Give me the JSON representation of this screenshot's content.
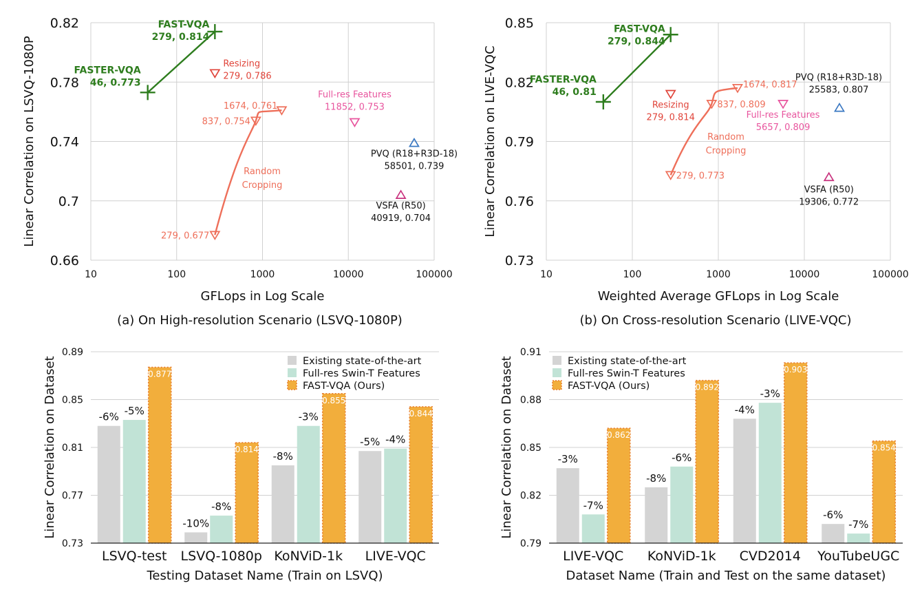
{
  "chart_data": [
    {
      "id": "a",
      "type": "scatter",
      "title": "(a) On High-resolution Scenario (LSVQ-1080P)",
      "xlabel": "GFLops in Log Scale",
      "ylabel": "Linear Correlation on LSVQ-1080P",
      "xscale": "log",
      "xlim": [
        10,
        100000
      ],
      "ylim": [
        0.66,
        0.82
      ],
      "xticks": [
        "10",
        "100",
        "1000",
        "10000",
        "100000"
      ],
      "xtick_values": [
        10,
        100,
        1000,
        10000,
        100000
      ],
      "yticks": [
        "0.66",
        "0.7",
        "0.74",
        "0.78",
        "0.82"
      ],
      "ytick_values": [
        0.66,
        0.7,
        0.74,
        0.78,
        0.82
      ],
      "grid": true,
      "series": [
        {
          "name": "FAST/FASTER-VQA",
          "color": "#2e7d1e",
          "marker": "plus",
          "line": true,
          "points": [
            {
              "x": 46,
              "y": 0.773,
              "label": "46, 0.773",
              "title": "FASTER-VQA"
            },
            {
              "x": 279,
              "y": 0.814,
              "label": "279, 0.814",
              "title": "FAST-VQA"
            }
          ]
        },
        {
          "name": "Resizing",
          "color": "#e0443a",
          "marker": "tri-down",
          "line": false,
          "points": [
            {
              "x": 279,
              "y": 0.786,
              "label": "279, 0.786",
              "title": "Resizing"
            }
          ]
        },
        {
          "name": "Random Cropping",
          "color": "#ee6f5a",
          "marker": "tri-down",
          "line": true,
          "smooth": true,
          "annotation": [
            "Random",
            "Cropping"
          ],
          "points": [
            {
              "x": 279,
              "y": 0.677,
              "label": "279, 0.677"
            },
            {
              "x": 837,
              "y": 0.754,
              "label": "837, 0.754"
            },
            {
              "x": 1674,
              "y": 0.761,
              "label": "1674, 0.761"
            }
          ]
        },
        {
          "name": "Full-res Features",
          "color": "#e8559e",
          "marker": "tri-down",
          "line": false,
          "points": [
            {
              "x": 11852,
              "y": 0.753,
              "label": "11852, 0.753",
              "title": "Full-res Features"
            }
          ]
        },
        {
          "name": "PVQ (R18+R3D-18)",
          "color": "#3a78c2",
          "marker": "tri-up",
          "line": false,
          "points": [
            {
              "x": 58501,
              "y": 0.739,
              "label": "58501, 0.739",
              "title": "PVQ (R18+R3D-18)"
            }
          ]
        },
        {
          "name": "VSFA (R50)",
          "color": "#c8327e",
          "marker": "tri-up",
          "line": false,
          "points": [
            {
              "x": 40919,
              "y": 0.704,
              "label": "40919, 0.704",
              "title": "VSFA (R50)"
            }
          ]
        }
      ]
    },
    {
      "id": "b",
      "type": "scatter",
      "title": "(b) On Cross-resolution Scenario (LIVE-VQC)",
      "xlabel": "Weighted Average GFLops in Log Scale",
      "ylabel": "Linear Correlation on LIVE-VQC",
      "xscale": "log",
      "xlim": [
        10,
        100000
      ],
      "ylim": [
        0.73,
        0.85
      ],
      "xticks": [
        "10",
        "100",
        "1000",
        "10000",
        "100000"
      ],
      "xtick_values": [
        10,
        100,
        1000,
        10000,
        100000
      ],
      "yticks": [
        "0.73",
        "0.76",
        "0.79",
        "0.82",
        "0.85"
      ],
      "ytick_values": [
        0.73,
        0.76,
        0.79,
        0.82,
        0.85
      ],
      "grid": true,
      "series": [
        {
          "name": "FAST/FASTER-VQA",
          "color": "#2e7d1e",
          "marker": "plus",
          "line": true,
          "points": [
            {
              "x": 46,
              "y": 0.81,
              "label": "46, 0.81",
              "title": "FASTER-VQA"
            },
            {
              "x": 279,
              "y": 0.844,
              "label": "279, 0.844",
              "title": "FAST-VQA"
            }
          ]
        },
        {
          "name": "Resizing",
          "color": "#e0443a",
          "marker": "tri-down",
          "line": false,
          "points": [
            {
              "x": 279,
              "y": 0.814,
              "label": "279, 0.814",
              "title": "Resizing"
            }
          ]
        },
        {
          "name": "Random Cropping",
          "color": "#ee6f5a",
          "marker": "tri-down",
          "line": true,
          "smooth": true,
          "annotation": [
            "Random",
            "Cropping"
          ],
          "points": [
            {
              "x": 279,
              "y": 0.773,
              "label": "279, 0.773"
            },
            {
              "x": 837,
              "y": 0.809,
              "label": "837, 0.809"
            },
            {
              "x": 1674,
              "y": 0.817,
              "label": "1674, 0.817"
            }
          ]
        },
        {
          "name": "Full-res Features",
          "color": "#e8559e",
          "marker": "tri-down",
          "line": false,
          "points": [
            {
              "x": 5657,
              "y": 0.809,
              "label": "5657, 0.809",
              "title": "Full-res Features"
            }
          ]
        },
        {
          "name": "PVQ (R18+R3D-18)",
          "color": "#3a78c2",
          "marker": "tri-up",
          "line": false,
          "points": [
            {
              "x": 25583,
              "y": 0.807,
              "label": "25583, 0.807",
              "title": "PVQ (R18+R3D-18)"
            }
          ]
        },
        {
          "name": "VSFA (R50)",
          "color": "#c8327e",
          "marker": "tri-up",
          "line": false,
          "points": [
            {
              "x": 19306,
              "y": 0.772,
              "label": "19306, 0.772",
              "title": "VSFA (R50)"
            }
          ]
        }
      ]
    },
    {
      "id": "c",
      "type": "bar",
      "xlabel": "Testing Dataset Name (Train on LSVQ)",
      "ylabel": "Linear Correlation on Dataset",
      "ylim": [
        0.73,
        0.89
      ],
      "yticks": [
        "0.73",
        "0.77",
        "0.81",
        "0.85",
        "0.89"
      ],
      "ytick_values": [
        0.73,
        0.77,
        0.81,
        0.85,
        0.89
      ],
      "grid": true,
      "legend_position": "top-right",
      "categories": [
        "LSVQ-test",
        "LSVQ-1080p",
        "KoNViD-1k",
        "LIVE-VQC"
      ],
      "series": [
        {
          "name": "Existing state-of-the-art",
          "color": "#d4d4d4",
          "values": [
            0.828,
            0.739,
            0.795,
            0.807
          ],
          "labels": [
            "-6%",
            "-10%",
            "-8%",
            "-5%"
          ]
        },
        {
          "name": "Full-res Swin-T Features",
          "color": "#c1e3d6",
          "values": [
            0.833,
            0.753,
            0.828,
            0.809
          ],
          "labels": [
            "-5%",
            "-8%",
            "-3%",
            "-4%"
          ]
        },
        {
          "name": "FAST-VQA (Ours)",
          "color": "#f2ae3c",
          "border": "#e87d2c",
          "values": [
            0.877,
            0.814,
            0.855,
            0.844
          ],
          "labels": [
            "0.877",
            "0.814",
            "0.855",
            "0.844"
          ]
        }
      ]
    },
    {
      "id": "d",
      "type": "bar",
      "xlabel": "Dataset Name (Train and Test on the same dataset)",
      "ylabel": "Linear Correlation on Dataset",
      "ylim": [
        0.79,
        0.91
      ],
      "yticks": [
        "0.79",
        "0.82",
        "0.85",
        "0.88",
        "0.91"
      ],
      "ytick_values": [
        0.79,
        0.82,
        0.85,
        0.88,
        0.91
      ],
      "grid": true,
      "legend_position": "top-left",
      "categories": [
        "LIVE-VQC",
        "KoNViD-1k",
        "CVD2014",
        "YouTubeUGC"
      ],
      "series": [
        {
          "name": "Existing state-of-the-art",
          "color": "#d4d4d4",
          "values": [
            0.837,
            0.825,
            0.868,
            0.802
          ],
          "labels": [
            "-3%",
            "-8%",
            "-4%",
            "-6%"
          ]
        },
        {
          "name": "Full-res Swin-T Features",
          "color": "#c1e3d6",
          "values": [
            0.808,
            0.838,
            0.878,
            0.796
          ],
          "labels": [
            "-7%",
            "-6%",
            "-3%",
            "-7%"
          ]
        },
        {
          "name": "FAST-VQA (Ours)",
          "color": "#f2ae3c",
          "border": "#e87d2c",
          "values": [
            0.862,
            0.892,
            0.903,
            0.854
          ],
          "labels": [
            "0.862",
            "0.892",
            "0.903",
            "0.854"
          ]
        }
      ]
    }
  ]
}
